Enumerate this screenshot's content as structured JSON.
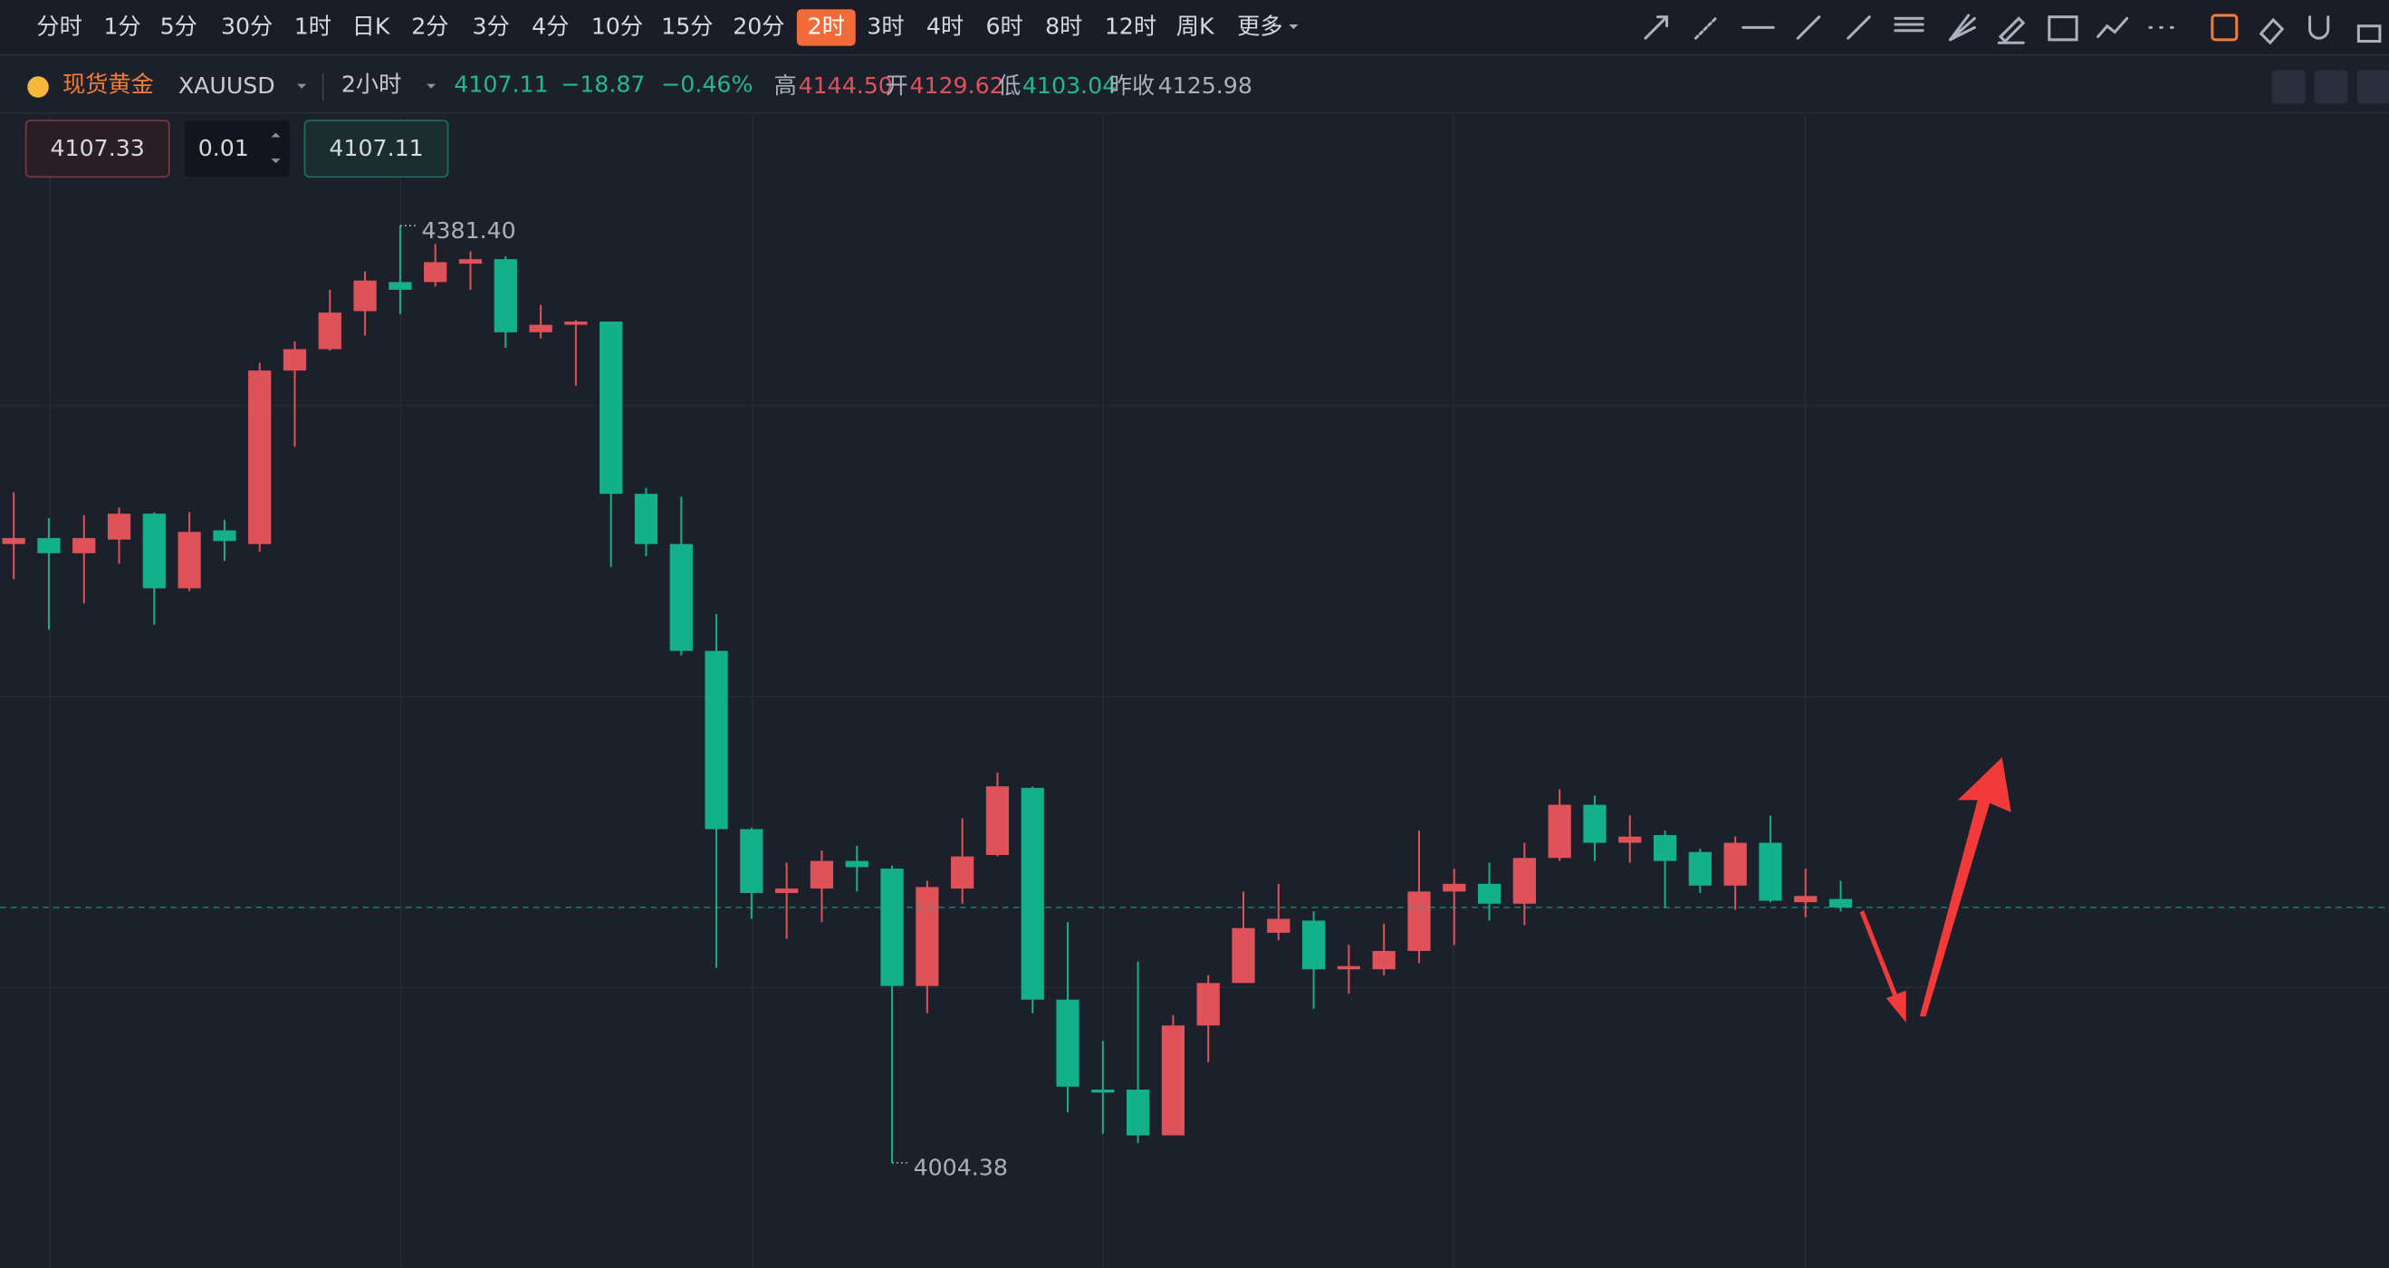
{
  "toolbar": {
    "periods": [
      "分时",
      "1分",
      "5分",
      "30分",
      "1时",
      "日K",
      "2分",
      "3分",
      "4分",
      "10分",
      "15分",
      "20分",
      "2时",
      "3时",
      "4时",
      "6时",
      "8时",
      "12时",
      "周K"
    ],
    "active": 12,
    "more": "更多"
  },
  "header": {
    "name": "现货黄金",
    "symbol": "XAUUSD",
    "interval": "2小时",
    "price": "4107.11",
    "change": "−18.87",
    "change_pct": "−0.46%",
    "high_label": "高",
    "high": "4144.50",
    "open_label": "开",
    "open": "4129.62",
    "low_label": "低",
    "low": "4103.04",
    "prev_close_label": "昨收",
    "prev_close": "4125.98"
  },
  "order": {
    "sell": "4107.33",
    "quantity": "0.01",
    "buy": "4107.11"
  },
  "chart_data": {
    "type": "candlestick",
    "up_color": "#e0525a",
    "down_color": "#14b08c",
    "open": [
      4253.3,
      4255.7,
      4249.6,
      4255.1,
      4265.5,
      4235.5,
      4258.8,
      4253.3,
      4323.1,
      4331.7,
      4347.0,
      4358.7,
      4358.7,
      4366.1,
      4367.9,
      4338.5,
      4341.5,
      4342.8,
      4273.5,
      4253.3,
      4210.3,
      4138.6,
      4112.9,
      4114.7,
      4125.8,
      4122.7,
      4075.5,
      4114.7,
      4128.2,
      4155.2,
      4070.0,
      4033.8,
      4033.8,
      4015.4,
      4059.6,
      4076.7,
      4096.9,
      4101.8,
      4082.2,
      4082.2,
      4089.6,
      4113.5,
      4116.6,
      4108.6,
      4127.0,
      4148.4,
      4133.1,
      4136.2,
      4129.4,
      4115.9,
      4133.1,
      4109.2,
      4110.5
    ],
    "high": [
      4274.1,
      4263.7,
      4264.9,
      4268.0,
      4266.1,
      4266.1,
      4263.1,
      4326.2,
      4334.8,
      4355.6,
      4363.0,
      4381.4,
      4374.0,
      4371.0,
      4369.1,
      4349.5,
      4343.4,
      4342.8,
      4275.9,
      4272.3,
      4225.1,
      4139.2,
      4125.1,
      4130.0,
      4131.9,
      4123.9,
      4117.8,
      4142.9,
      4161.3,
      4155.8,
      4101.2,
      4053.4,
      4085.3,
      4063.8,
      4079.8,
      4113.5,
      4116.6,
      4105.5,
      4092.0,
      4100.6,
      4138.0,
      4122.7,
      4125.1,
      4133.1,
      4154.6,
      4152.1,
      4144.1,
      4138.0,
      4130.7,
      4135.6,
      4144.1,
      4122.7,
      4117.8
    ],
    "low": [
      4239.2,
      4218.9,
      4229.4,
      4245.3,
      4220.8,
      4234.3,
      4246.5,
      4250.2,
      4292.5,
      4331.1,
      4337.2,
      4345.8,
      4356.9,
      4355.6,
      4332.3,
      4336.0,
      4317.0,
      4244.1,
      4248.4,
      4208.5,
      4082.8,
      4102.5,
      4094.5,
      4101.2,
      4113.5,
      4004.38,
      4064.5,
      4108.6,
      4127.6,
      4064.5,
      4024.6,
      4016.0,
      4012.3,
      4015.4,
      4044.8,
      4076.7,
      4093.9,
      4066.3,
      4072.4,
      4079.8,
      4084.7,
      4092.0,
      4101.8,
      4100.0,
      4125.8,
      4125.8,
      4125.1,
      4106.8,
      4112.9,
      4106.1,
      4109.2,
      4103.1,
      4105.5
    ],
    "close": [
      4255.7,
      4249.6,
      4255.7,
      4265.5,
      4235.5,
      4258.2,
      4254.5,
      4323.1,
      4331.7,
      4346.4,
      4359.3,
      4355.6,
      4366.7,
      4367.9,
      4338.5,
      4341.5,
      4342.8,
      4273.5,
      4253.3,
      4210.3,
      4138.6,
      4112.9,
      4114.7,
      4125.8,
      4123.3,
      4075.5,
      4115.3,
      4127.6,
      4155.8,
      4070.0,
      4035.0,
      4032.6,
      4015.4,
      4059.6,
      4076.7,
      4098.8,
      4102.5,
      4082.2,
      4083.5,
      4089.6,
      4113.5,
      4116.6,
      4108.6,
      4127.0,
      4148.4,
      4133.1,
      4135.6,
      4125.8,
      4115.9,
      4133.1,
      4109.8,
      4111.7,
      4107.11
    ],
    "annotations": [
      {
        "value": 4381.4,
        "label": "4381.40"
      },
      {
        "value": 4004.38,
        "label": "4004.38"
      }
    ]
  }
}
